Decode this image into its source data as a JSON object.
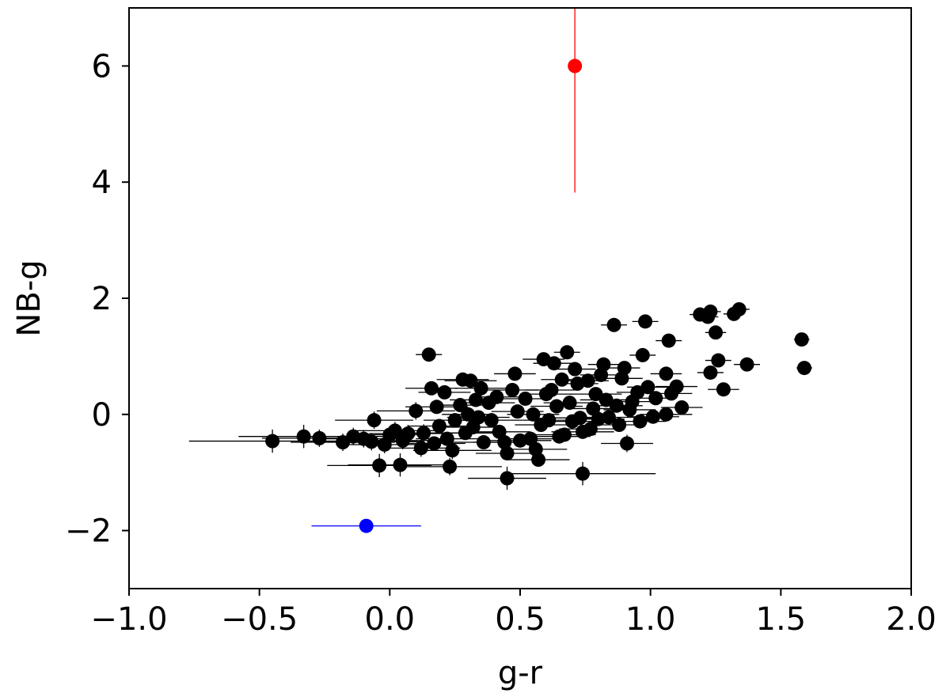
{
  "chart_data": {
    "type": "scatter",
    "title": "",
    "xlabel": "g-r",
    "ylabel": "NB-g",
    "xlim": [
      -1.0,
      2.0
    ],
    "ylim": [
      -3.0,
      7.0
    ],
    "x_ticks": [
      -1.0,
      -0.5,
      0.0,
      0.5,
      1.0,
      1.5,
      2.0
    ],
    "x_tick_labels": [
      "−1.0",
      "−0.5",
      "0.0",
      "0.5",
      "1.0",
      "1.5",
      "2.0"
    ],
    "y_ticks": [
      -2,
      0,
      2,
      4,
      6
    ],
    "y_tick_labels": [
      "−2",
      "0",
      "2",
      "4",
      "6"
    ],
    "grid": false,
    "legend": "none",
    "series": [
      {
        "color": "#000000",
        "marker": "circle",
        "points": [
          {
            "x": -0.45,
            "y": -0.46,
            "xerr": 0.32,
            "yerr": 0.2
          },
          {
            "x": -0.33,
            "y": -0.38,
            "xerr": 0.25,
            "yerr": 0.2
          },
          {
            "x": -0.27,
            "y": -0.41,
            "xerr": 0.22,
            "yerr": 0.15
          },
          {
            "x": -0.18,
            "y": -0.48,
            "xerr": 0.2,
            "yerr": 0.15
          },
          {
            "x": -0.14,
            "y": -0.38,
            "xerr": 0.18,
            "yerr": 0.15
          },
          {
            "x": -0.1,
            "y": -0.42,
            "xerr": 0.18,
            "yerr": 0.15
          },
          {
            "x": -0.06,
            "y": -0.1,
            "xerr": 0.15,
            "yerr": 0.15
          },
          {
            "x": -0.07,
            "y": -0.47,
            "xerr": 0.18,
            "yerr": 0.15
          },
          {
            "x": -0.04,
            "y": -0.88,
            "xerr": 0.2,
            "yerr": 0.2
          },
          {
            "x": -0.02,
            "y": -0.52,
            "xerr": 0.15,
            "yerr": 0.15
          },
          {
            "x": 0.0,
            "y": -0.35,
            "xerr": 0.15,
            "yerr": 0.15
          },
          {
            "x": 0.02,
            "y": -0.28,
            "xerr": 0.15,
            "yerr": 0.15
          },
          {
            "x": 0.04,
            "y": -0.87,
            "xerr": 0.2,
            "yerr": 0.2
          },
          {
            "x": 0.05,
            "y": -0.45,
            "xerr": 0.15,
            "yerr": 0.15
          },
          {
            "x": 0.07,
            "y": -0.33,
            "xerr": 0.15,
            "yerr": 0.15
          },
          {
            "x": 0.1,
            "y": 0.06,
            "xerr": 0.15,
            "yerr": 0.15
          },
          {
            "x": 0.12,
            "y": -0.58,
            "xerr": 0.15,
            "yerr": 0.15
          },
          {
            "x": 0.13,
            "y": -0.32,
            "xerr": 0.15,
            "yerr": 0.15
          },
          {
            "x": 0.15,
            "y": 1.03,
            "xerr": 0.05,
            "yerr": 0.1
          },
          {
            "x": 0.16,
            "y": 0.45,
            "xerr": 0.1,
            "yerr": 0.1
          },
          {
            "x": 0.17,
            "y": -0.5,
            "xerr": 0.12,
            "yerr": 0.12
          },
          {
            "x": 0.18,
            "y": 0.13,
            "xerr": 0.12,
            "yerr": 0.12
          },
          {
            "x": 0.19,
            "y": -0.2,
            "xerr": 0.12,
            "yerr": 0.12
          },
          {
            "x": 0.21,
            "y": 0.38,
            "xerr": 0.1,
            "yerr": 0.1
          },
          {
            "x": 0.22,
            "y": -0.42,
            "xerr": 0.12,
            "yerr": 0.12
          },
          {
            "x": 0.23,
            "y": -0.9,
            "xerr": 0.2,
            "yerr": 0.15
          },
          {
            "x": 0.24,
            "y": -0.62,
            "xerr": 0.15,
            "yerr": 0.15
          },
          {
            "x": 0.25,
            "y": -0.1,
            "xerr": 0.12,
            "yerr": 0.12
          },
          {
            "x": 0.27,
            "y": 0.16,
            "xerr": 0.1,
            "yerr": 0.1
          },
          {
            "x": 0.28,
            "y": 0.6,
            "xerr": 0.1,
            "yerr": 0.1
          },
          {
            "x": 0.29,
            "y": -0.32,
            "xerr": 0.12,
            "yerr": 0.12
          },
          {
            "x": 0.3,
            "y": 0.0,
            "xerr": 0.1,
            "yerr": 0.1
          },
          {
            "x": 0.31,
            "y": 0.58,
            "xerr": 0.1,
            "yerr": 0.1
          },
          {
            "x": 0.32,
            "y": -0.22,
            "xerr": 0.12,
            "yerr": 0.12
          },
          {
            "x": 0.33,
            "y": 0.25,
            "xerr": 0.1,
            "yerr": 0.1
          },
          {
            "x": 0.34,
            "y": -0.05,
            "xerr": 0.12,
            "yerr": 0.12
          },
          {
            "x": 0.35,
            "y": 0.45,
            "xerr": 0.1,
            "yerr": 0.1
          },
          {
            "x": 0.36,
            "y": -0.48,
            "xerr": 0.12,
            "yerr": 0.12
          },
          {
            "x": 0.38,
            "y": 0.2,
            "xerr": 0.1,
            "yerr": 0.1
          },
          {
            "x": 0.39,
            "y": -0.1,
            "xerr": 0.12,
            "yerr": 0.12
          },
          {
            "x": 0.41,
            "y": 0.3,
            "xerr": 0.1,
            "yerr": 0.1
          },
          {
            "x": 0.42,
            "y": -0.3,
            "xerr": 0.12,
            "yerr": 0.12
          },
          {
            "x": 0.44,
            "y": -0.48,
            "xerr": 0.12,
            "yerr": 0.12
          },
          {
            "x": 0.45,
            "y": -1.1,
            "xerr": 0.15,
            "yerr": 0.2
          },
          {
            "x": 0.45,
            "y": -0.67,
            "xerr": 0.12,
            "yerr": 0.12
          },
          {
            "x": 0.47,
            "y": 0.42,
            "xerr": 0.1,
            "yerr": 0.1
          },
          {
            "x": 0.48,
            "y": 0.7,
            "xerr": 0.08,
            "yerr": 0.1
          },
          {
            "x": 0.49,
            "y": 0.05,
            "xerr": 0.1,
            "yerr": 0.1
          },
          {
            "x": 0.5,
            "y": -0.45,
            "xerr": 0.12,
            "yerr": 0.12
          },
          {
            "x": 0.52,
            "y": 0.27,
            "xerr": 0.1,
            "yerr": 0.1
          },
          {
            "x": 0.54,
            "y": -0.42,
            "xerr": 0.12,
            "yerr": 0.12
          },
          {
            "x": 0.55,
            "y": 0.0,
            "xerr": 0.1,
            "yerr": 0.1
          },
          {
            "x": 0.56,
            "y": -0.6,
            "xerr": 0.12,
            "yerr": 0.12
          },
          {
            "x": 0.57,
            "y": -0.78,
            "xerr": 0.12,
            "yerr": 0.12
          },
          {
            "x": 0.58,
            "y": -0.18,
            "xerr": 0.1,
            "yerr": 0.1
          },
          {
            "x": 0.59,
            "y": 0.95,
            "xerr": 0.08,
            "yerr": 0.1
          },
          {
            "x": 0.6,
            "y": 0.35,
            "xerr": 0.1,
            "yerr": 0.1
          },
          {
            "x": 0.61,
            "y": -0.1,
            "xerr": 0.1,
            "yerr": 0.1
          },
          {
            "x": 0.62,
            "y": 0.42,
            "xerr": 0.1,
            "yerr": 0.1
          },
          {
            "x": 0.63,
            "y": 0.88,
            "xerr": 0.08,
            "yerr": 0.1
          },
          {
            "x": 0.64,
            "y": 0.14,
            "xerr": 0.1,
            "yerr": 0.1
          },
          {
            "x": 0.65,
            "y": -0.38,
            "xerr": 0.12,
            "yerr": 0.12
          },
          {
            "x": 0.66,
            "y": 0.6,
            "xerr": 0.08,
            "yerr": 0.1
          },
          {
            "x": 0.67,
            "y": -0.35,
            "xerr": 0.12,
            "yerr": 0.12
          },
          {
            "x": 0.68,
            "y": 1.07,
            "xerr": 0.05,
            "yerr": 0.1
          },
          {
            "x": 0.69,
            "y": 0.2,
            "xerr": 0.1,
            "yerr": 0.1
          },
          {
            "x": 0.7,
            "y": -0.12,
            "xerr": 0.1,
            "yerr": 0.1
          },
          {
            "x": 0.71,
            "y": 0.78,
            "xerr": 0.08,
            "yerr": 0.1
          },
          {
            "x": 0.72,
            "y": 0.53,
            "xerr": 0.08,
            "yerr": 0.1
          },
          {
            "x": 0.73,
            "y": -0.06,
            "xerr": 0.1,
            "yerr": 0.1
          },
          {
            "x": 0.74,
            "y": -1.02,
            "xerr": 0.28,
            "yerr": 0.2
          },
          {
            "x": 0.74,
            "y": -0.3,
            "xerr": 0.12,
            "yerr": 0.12
          },
          {
            "x": 0.76,
            "y": 0.58,
            "xerr": 0.08,
            "yerr": 0.1
          },
          {
            "x": 0.77,
            "y": -0.25,
            "xerr": 0.12,
            "yerr": 0.12
          },
          {
            "x": 0.78,
            "y": 0.1,
            "xerr": 0.1,
            "yerr": 0.1
          },
          {
            "x": 0.79,
            "y": 0.35,
            "xerr": 0.1,
            "yerr": 0.1
          },
          {
            "x": 0.8,
            "y": -0.08,
            "xerr": 0.1,
            "yerr": 0.1
          },
          {
            "x": 0.81,
            "y": 0.68,
            "xerr": 0.08,
            "yerr": 0.1
          },
          {
            "x": 0.82,
            "y": 0.86,
            "xerr": 0.06,
            "yerr": 0.1
          },
          {
            "x": 0.83,
            "y": 0.25,
            "xerr": 0.1,
            "yerr": 0.1
          },
          {
            "x": 0.84,
            "y": -0.05,
            "xerr": 0.1,
            "yerr": 0.1
          },
          {
            "x": 0.86,
            "y": 1.54,
            "xerr": 0.05,
            "yerr": 0.1
          },
          {
            "x": 0.87,
            "y": 0.15,
            "xerr": 0.1,
            "yerr": 0.1
          },
          {
            "x": 0.88,
            "y": -0.18,
            "xerr": 0.1,
            "yerr": 0.1
          },
          {
            "x": 0.89,
            "y": 0.62,
            "xerr": 0.08,
            "yerr": 0.1
          },
          {
            "x": 0.9,
            "y": 0.8,
            "xerr": 0.06,
            "yerr": 0.1
          },
          {
            "x": 0.91,
            "y": -0.5,
            "xerr": 0.1,
            "yerr": 0.15
          },
          {
            "x": 0.92,
            "y": 0.08,
            "xerr": 0.1,
            "yerr": 0.1
          },
          {
            "x": 0.93,
            "y": 0.22,
            "xerr": 0.1,
            "yerr": 0.1
          },
          {
            "x": 0.95,
            "y": 0.38,
            "xerr": 0.08,
            "yerr": 0.1
          },
          {
            "x": 0.96,
            "y": -0.12,
            "xerr": 0.1,
            "yerr": 0.1
          },
          {
            "x": 0.97,
            "y": 1.02,
            "xerr": 0.05,
            "yerr": 0.1
          },
          {
            "x": 0.98,
            "y": 1.6,
            "xerr": 0.05,
            "yerr": 0.1
          },
          {
            "x": 0.99,
            "y": 0.47,
            "xerr": 0.08,
            "yerr": 0.1
          },
          {
            "x": 1.01,
            "y": -0.04,
            "xerr": 0.1,
            "yerr": 0.1
          },
          {
            "x": 1.02,
            "y": 0.28,
            "xerr": 0.08,
            "yerr": 0.1
          },
          {
            "x": 1.06,
            "y": 0.0,
            "xerr": 0.1,
            "yerr": 0.1
          },
          {
            "x": 1.06,
            "y": 0.7,
            "xerr": 0.06,
            "yerr": 0.1
          },
          {
            "x": 1.07,
            "y": 1.27,
            "xerr": 0.05,
            "yerr": 0.12
          },
          {
            "x": 1.08,
            "y": 0.36,
            "xerr": 0.08,
            "yerr": 0.1
          },
          {
            "x": 1.1,
            "y": 0.48,
            "xerr": 0.08,
            "yerr": 0.1
          },
          {
            "x": 1.12,
            "y": 0.12,
            "xerr": 0.08,
            "yerr": 0.1
          },
          {
            "x": 1.19,
            "y": 1.72,
            "xerr": 0.04,
            "yerr": 0.08
          },
          {
            "x": 1.22,
            "y": 1.68,
            "xerr": 0.04,
            "yerr": 0.08
          },
          {
            "x": 1.23,
            "y": 1.77,
            "xerr": 0.04,
            "yerr": 0.08
          },
          {
            "x": 1.23,
            "y": 0.72,
            "xerr": 0.05,
            "yerr": 0.08
          },
          {
            "x": 1.25,
            "y": 1.41,
            "xerr": 0.04,
            "yerr": 0.08
          },
          {
            "x": 1.26,
            "y": 0.93,
            "xerr": 0.05,
            "yerr": 0.08
          },
          {
            "x": 1.28,
            "y": 0.43,
            "xerr": 0.06,
            "yerr": 0.1
          },
          {
            "x": 1.32,
            "y": 1.73,
            "xerr": 0.04,
            "yerr": 0.08
          },
          {
            "x": 1.34,
            "y": 1.81,
            "xerr": 0.04,
            "yerr": 0.08
          },
          {
            "x": 1.37,
            "y": 0.86,
            "xerr": 0.05,
            "yerr": 0.08
          },
          {
            "x": 1.58,
            "y": 1.29,
            "xerr": 0.03,
            "yerr": 0.06
          },
          {
            "x": 1.59,
            "y": 0.8,
            "xerr": 0.03,
            "yerr": 0.06
          }
        ]
      },
      {
        "color": "#ff0000",
        "marker": "circle",
        "points": [
          {
            "x": 0.71,
            "y": 6.0,
            "xerr": 0.0,
            "yerr_low": 2.18,
            "yerr_high": 1.0
          }
        ]
      },
      {
        "color": "#0000ff",
        "marker": "circle",
        "points": [
          {
            "x": -0.09,
            "y": -1.92,
            "xerr": 0.21,
            "yerr": 0.0
          }
        ]
      }
    ]
  }
}
